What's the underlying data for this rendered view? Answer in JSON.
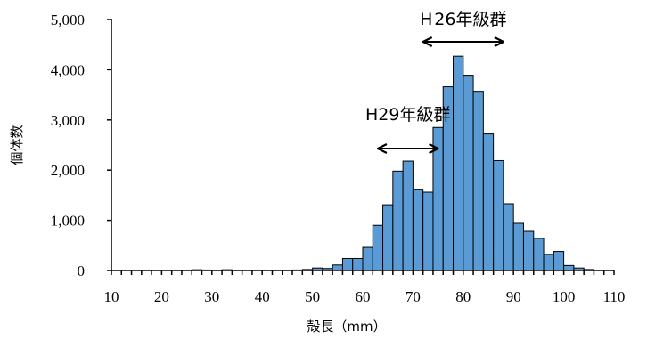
{
  "chart_data": {
    "type": "bar",
    "title": "",
    "xlabel": "殻長（mm）",
    "ylabel": "個体数",
    "xlim": [
      10,
      110
    ],
    "ylim": [
      0,
      5000
    ],
    "bin_width": 2,
    "x_ticks": [
      "10",
      "20",
      "30",
      "40",
      "50",
      "60",
      "70",
      "80",
      "90",
      "100",
      "110"
    ],
    "y_ticks": [
      "0",
      "1,000",
      "2,000",
      "3,000",
      "4,000",
      "5,000"
    ],
    "bar_color": "#5b9bd5",
    "grid": false,
    "bins": [
      {
        "x": 10,
        "value": 0
      },
      {
        "x": 12,
        "value": 0
      },
      {
        "x": 14,
        "value": 0
      },
      {
        "x": 16,
        "value": 0
      },
      {
        "x": 18,
        "value": 0
      },
      {
        "x": 20,
        "value": 0
      },
      {
        "x": 22,
        "value": 0
      },
      {
        "x": 24,
        "value": 5
      },
      {
        "x": 26,
        "value": 15
      },
      {
        "x": 28,
        "value": 10
      },
      {
        "x": 30,
        "value": 5
      },
      {
        "x": 32,
        "value": 15
      },
      {
        "x": 34,
        "value": 5
      },
      {
        "x": 36,
        "value": 5
      },
      {
        "x": 38,
        "value": 5
      },
      {
        "x": 40,
        "value": 5
      },
      {
        "x": 42,
        "value": 5
      },
      {
        "x": 44,
        "value": 5
      },
      {
        "x": 46,
        "value": 10
      },
      {
        "x": 48,
        "value": 20
      },
      {
        "x": 50,
        "value": 50
      },
      {
        "x": 52,
        "value": 40
      },
      {
        "x": 54,
        "value": 110
      },
      {
        "x": 56,
        "value": 240
      },
      {
        "x": 58,
        "value": 240
      },
      {
        "x": 60,
        "value": 460
      },
      {
        "x": 62,
        "value": 900
      },
      {
        "x": 64,
        "value": 1310
      },
      {
        "x": 66,
        "value": 1980
      },
      {
        "x": 68,
        "value": 2180
      },
      {
        "x": 70,
        "value": 1620
      },
      {
        "x": 72,
        "value": 1560
      },
      {
        "x": 74,
        "value": 2850
      },
      {
        "x": 76,
        "value": 3660
      },
      {
        "x": 78,
        "value": 4270
      },
      {
        "x": 80,
        "value": 3890
      },
      {
        "x": 82,
        "value": 3570
      },
      {
        "x": 84,
        "value": 2720
      },
      {
        "x": 86,
        "value": 2190
      },
      {
        "x": 88,
        "value": 1330
      },
      {
        "x": 90,
        "value": 940
      },
      {
        "x": 92,
        "value": 780
      },
      {
        "x": 94,
        "value": 640
      },
      {
        "x": 96,
        "value": 320
      },
      {
        "x": 98,
        "value": 380
      },
      {
        "x": 100,
        "value": 100
      },
      {
        "x": 102,
        "value": 50
      },
      {
        "x": 104,
        "value": 20
      },
      {
        "x": 106,
        "value": 5
      },
      {
        "x": 108,
        "value": 0
      }
    ],
    "annotations": [
      {
        "text": "H 26年級群",
        "x_from": 72,
        "x_to": 88
      },
      {
        "text": "H29年級群",
        "x_from": 63,
        "x_to": 75
      }
    ]
  }
}
